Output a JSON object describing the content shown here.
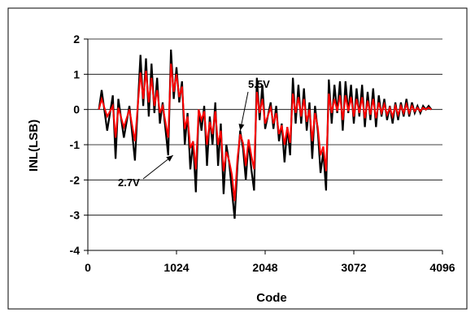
{
  "chart_data": {
    "type": "line",
    "xlabel": "Code",
    "ylabel": "INL(LSB)",
    "xlim": [
      0,
      4096
    ],
    "ylim": [
      -4,
      2
    ],
    "x_ticks": [
      0,
      1024,
      2048,
      3072,
      4096
    ],
    "y_ticks": [
      2,
      1,
      0,
      -1,
      -2,
      -3,
      -4
    ],
    "grid": "horizontal",
    "series": [
      {
        "name": "2.7V",
        "color": "#000000",
        "x": [
          128,
          160,
          224,
          288,
          320,
          352,
          416,
          480,
          544,
          608,
          640,
          672,
          704,
          736,
          768,
          800,
          832,
          864,
          928,
          960,
          992,
          1024,
          1056,
          1088,
          1120,
          1152,
          1184,
          1216,
          1248,
          1280,
          1312,
          1344,
          1376,
          1408,
          1440,
          1472,
          1504,
          1536,
          1568,
          1600,
          1632,
          1664,
          1696,
          1728,
          1760,
          1792,
          1824,
          1856,
          1888,
          1920,
          1952,
          1984,
          2016,
          2048,
          2112,
          2144,
          2176,
          2208,
          2240,
          2272,
          2304,
          2336,
          2368,
          2400,
          2432,
          2464,
          2496,
          2528,
          2560,
          2592,
          2624,
          2656,
          2688,
          2720,
          2752,
          2784,
          2816,
          2848,
          2880,
          2912,
          2944,
          2976,
          3008,
          3040,
          3072,
          3104,
          3136,
          3168,
          3200,
          3232,
          3264,
          3296,
          3328,
          3360,
          3392,
          3424,
          3456,
          3488,
          3520,
          3552,
          3584,
          3616,
          3648,
          3680,
          3712,
          3744,
          3776,
          3808,
          3840,
          3872,
          3904,
          3936,
          3968
        ],
        "values": [
          0.0,
          0.55,
          -0.6,
          0.4,
          -1.4,
          0.3,
          -0.8,
          0.1,
          -1.45,
          1.55,
          0.1,
          1.45,
          -0.2,
          1.3,
          -0.1,
          0.9,
          -0.4,
          0.2,
          -1.3,
          1.7,
          0.3,
          1.2,
          0.2,
          0.8,
          -1.0,
          -0.1,
          -1.7,
          -0.9,
          -2.35,
          0.0,
          -0.6,
          0.1,
          -1.6,
          -0.2,
          -1.0,
          0.2,
          -1.6,
          -0.4,
          -2.4,
          -1.0,
          -1.5,
          -2.3,
          -3.1,
          -1.6,
          -0.6,
          -1.1,
          -2.0,
          -0.9,
          -1.7,
          -2.3,
          0.9,
          -0.3,
          0.7,
          -0.55,
          0.2,
          -0.55,
          0.1,
          -0.9,
          -0.4,
          -1.5,
          -0.5,
          -1.3,
          0.9,
          -0.4,
          0.7,
          -0.4,
          0.6,
          -0.6,
          0.2,
          -1.4,
          0.1,
          -0.6,
          -1.8,
          -1.2,
          -2.3,
          0.85,
          -0.4,
          0.7,
          -0.1,
          0.8,
          -0.6,
          0.8,
          -0.1,
          0.7,
          -0.4,
          0.6,
          -0.2,
          0.7,
          -0.5,
          0.5,
          -0.3,
          0.6,
          -0.5,
          0.4,
          -0.2,
          0.3,
          -0.3,
          0.1,
          -0.4,
          0.2,
          -0.3,
          0.2,
          -0.2,
          0.3,
          -0.2,
          0.2,
          -0.1,
          0.1,
          -0.1,
          0.1,
          0.0,
          0.1,
          0.0
        ]
      },
      {
        "name": "5.5V",
        "color": "#ff0000",
        "x": [
          128,
          160,
          224,
          288,
          320,
          352,
          416,
          480,
          544,
          608,
          640,
          672,
          704,
          736,
          768,
          800,
          832,
          864,
          928,
          960,
          992,
          1024,
          1056,
          1088,
          1120,
          1152,
          1184,
          1216,
          1248,
          1280,
          1312,
          1344,
          1376,
          1408,
          1440,
          1472,
          1504,
          1536,
          1568,
          1600,
          1632,
          1664,
          1696,
          1728,
          1760,
          1792,
          1824,
          1856,
          1888,
          1920,
          1952,
          1984,
          2016,
          2048,
          2112,
          2144,
          2176,
          2208,
          2240,
          2272,
          2304,
          2336,
          2368,
          2400,
          2432,
          2464,
          2496,
          2528,
          2560,
          2592,
          2624,
          2656,
          2688,
          2720,
          2752,
          2784,
          2816,
          2848,
          2880,
          2912,
          2944,
          2976,
          3008,
          3040,
          3072,
          3104,
          3136,
          3168,
          3200,
          3232,
          3264,
          3296,
          3328,
          3360,
          3392,
          3424,
          3456,
          3488,
          3520,
          3552,
          3584,
          3616,
          3648,
          3680,
          3712,
          3744,
          3776,
          3808,
          3840,
          3872,
          3904,
          3936,
          3968
        ],
        "values": [
          0.0,
          0.3,
          -0.2,
          0.1,
          -0.8,
          0.05,
          -0.5,
          0.0,
          -0.9,
          1.05,
          0.3,
          1.1,
          0.2,
          0.9,
          0.1,
          0.55,
          -0.1,
          0.1,
          -0.8,
          1.3,
          0.5,
          1.0,
          0.35,
          0.65,
          -0.55,
          -0.2,
          -1.1,
          -0.9,
          -1.7,
          0.0,
          -0.3,
          -0.05,
          -1.0,
          -0.35,
          -0.7,
          -0.05,
          -1.0,
          -0.6,
          -1.75,
          -1.2,
          -1.45,
          -1.85,
          -2.6,
          -1.4,
          -0.7,
          -0.95,
          -1.6,
          -0.85,
          -1.3,
          -1.7,
          0.5,
          -0.1,
          0.3,
          -0.4,
          0.05,
          -0.4,
          -0.1,
          -0.7,
          -0.45,
          -1.0,
          -0.5,
          -0.95,
          0.45,
          -0.1,
          0.35,
          -0.2,
          0.3,
          -0.35,
          0.0,
          -0.9,
          -0.1,
          -0.5,
          -1.3,
          -1.05,
          -1.75,
          0.45,
          -0.1,
          0.3,
          -0.05,
          0.4,
          -0.3,
          0.4,
          -0.05,
          0.35,
          -0.2,
          0.3,
          -0.1,
          0.35,
          -0.25,
          0.25,
          -0.15,
          0.3,
          -0.25,
          0.2,
          -0.1,
          0.15,
          -0.15,
          0.05,
          -0.2,
          0.1,
          -0.15,
          0.1,
          -0.1,
          0.15,
          -0.1,
          0.1,
          -0.05,
          0.05,
          -0.05,
          0.05,
          0.0,
          0.05,
          0.0
        ]
      }
    ],
    "annotations": [
      {
        "text": "5.5V",
        "points_to": [
          1760,
          -0.6
        ]
      },
      {
        "text": "2.7V",
        "points_to": [
          984,
          -1.3
        ]
      }
    ]
  }
}
